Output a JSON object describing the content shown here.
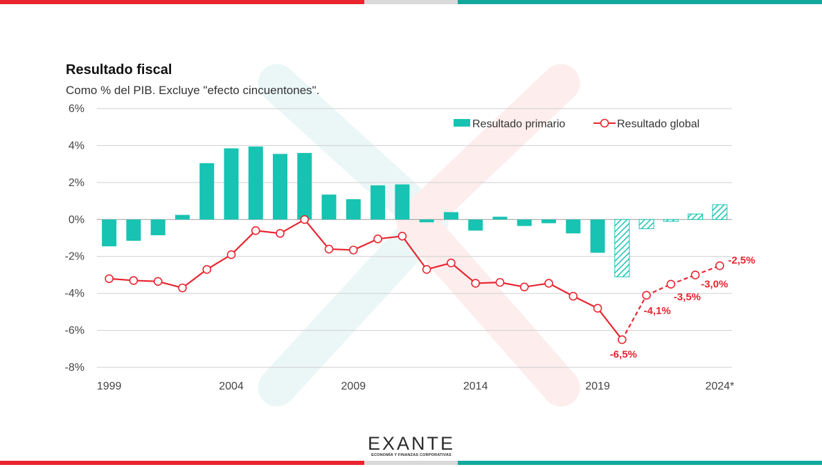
{
  "colors": {
    "primary": "#17c3b2",
    "global": "#e8242f",
    "stripe_red": "#e8242f",
    "stripe_gray": "#d9d9d9",
    "stripe_teal": "#13a89e"
  },
  "logo": {
    "text": "EXANTE",
    "tagline": "ECONOMÍA Y FINANZAS CORPORATIVAS"
  },
  "chart_data": {
    "type": "bar",
    "title": "Resultado fiscal",
    "subtitle": "Como % del PIB. Excluye \"efecto cincuentones\".",
    "x": [
      1999,
      2000,
      2001,
      2002,
      2003,
      2004,
      2005,
      2006,
      2007,
      2008,
      2009,
      2010,
      2011,
      2012,
      2013,
      2014,
      2015,
      2016,
      2017,
      2018,
      2019,
      2020,
      2021,
      2022,
      2023,
      2024
    ],
    "x_tick_labels": [
      "1999",
      "2004",
      "2009",
      "2014",
      "2019",
      "2024*"
    ],
    "y_tick_labels": [
      "6%",
      "4%",
      "2%",
      "0%",
      "-2%",
      "-4%",
      "-6%",
      "-8%"
    ],
    "ylim": [
      -8,
      6
    ],
    "grid": true,
    "legend_position": "top-right",
    "projected_from": 2020,
    "series": [
      {
        "name": "Resultado primario",
        "type": "bar",
        "values": [
          -1.45,
          -1.15,
          -0.85,
          0.25,
          3.05,
          3.85,
          3.95,
          3.55,
          3.6,
          1.35,
          1.1,
          1.85,
          1.9,
          -0.15,
          0.4,
          -0.6,
          0.15,
          -0.35,
          -0.2,
          -0.75,
          -1.8,
          -3.1,
          -0.5,
          -0.1,
          0.3,
          0.8
        ]
      },
      {
        "name": "Resultado global",
        "type": "line",
        "values": [
          -3.2,
          -3.3,
          -3.35,
          -3.7,
          -2.7,
          -1.9,
          -0.6,
          -0.75,
          0.0,
          -1.6,
          -1.65,
          -1.05,
          -0.9,
          -2.7,
          -2.35,
          -3.45,
          -3.4,
          -3.65,
          -3.45,
          -4.15,
          -4.8,
          -6.5,
          -4.1,
          -3.5,
          -3.0,
          -2.5
        ]
      }
    ],
    "annotations": [
      {
        "x": 2020,
        "text": "-6,5%"
      },
      {
        "x": 2021,
        "text": "-4,1%"
      },
      {
        "x": 2022,
        "text": "-3,5%"
      },
      {
        "x": 2023,
        "text": "-3,0%"
      },
      {
        "x": 2024,
        "text": "-2,5%"
      }
    ]
  }
}
